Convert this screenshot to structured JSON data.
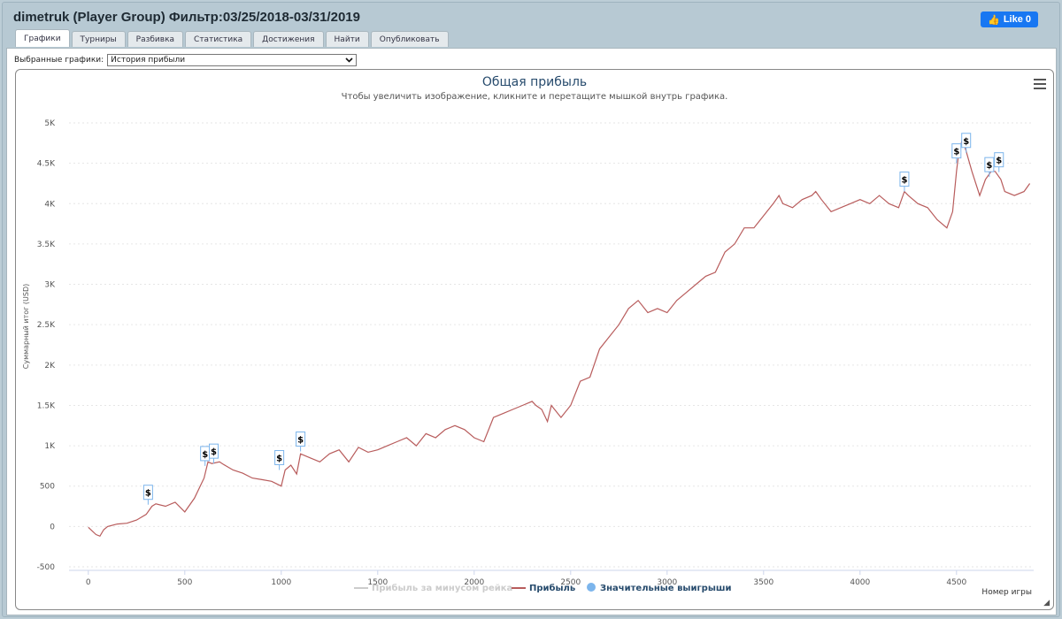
{
  "window": {
    "title": "dimetruk (Player Group) Фильтр:03/25/2018-03/31/2019",
    "like_label": "Like 0"
  },
  "tabs": [
    {
      "label": "Графики",
      "active": true
    },
    {
      "label": "Турниры",
      "active": false
    },
    {
      "label": "Разбивка",
      "active": false
    },
    {
      "label": "Статистика",
      "active": false
    },
    {
      "label": "Достижения",
      "active": false
    },
    {
      "label": "Найти",
      "active": false
    },
    {
      "label": "Опубликовать",
      "active": false
    }
  ],
  "selector": {
    "label": "Выбранные графики:",
    "value": "История прибыли"
  },
  "icons": {
    "menu": "hamburger-menu-icon",
    "dropdown": "chevron-down-icon",
    "like": "thumbs-up-icon",
    "resize": "resize-grip-icon"
  },
  "colors": {
    "profit_line": "#b85c5c",
    "rake_line": "#cccccc",
    "big_win_marker": "#7cb5ec",
    "title": "#274b6d"
  },
  "chart_data": {
    "type": "line",
    "title": "Общая прибыль",
    "subtitle": "Чтобы увеличить изображение, кликните и перетащите мышкой внутрь графика.",
    "xlabel": "Номер игры",
    "ylabel": "Суммарный итог (USD)",
    "xlim": [
      -100,
      4900
    ],
    "ylim": [
      -500,
      5000
    ],
    "xticks": [
      0,
      500,
      1000,
      1500,
      2000,
      2500,
      3000,
      3500,
      4000,
      4500
    ],
    "xtick_labels": [
      "0",
      "500",
      "1000",
      "1500",
      "2000",
      "2500",
      "3000",
      "3500",
      "4000",
      "4500"
    ],
    "yticks": [
      -500,
      0,
      500,
      1000,
      1500,
      2000,
      2500,
      3000,
      3500,
      4000,
      4500,
      5000
    ],
    "ytick_labels": [
      "-500",
      "0",
      "500",
      "1K",
      "1.5K",
      "2K",
      "2.5K",
      "3K",
      "3.5K",
      "4K",
      "4.5K",
      "5K"
    ],
    "grid": "horizontal",
    "legend_position": "bottom-center",
    "series": [
      {
        "name": "Прибыль",
        "x": [
          0,
          40,
          60,
          80,
          100,
          150,
          200,
          250,
          300,
          330,
          350,
          400,
          450,
          500,
          550,
          600,
          620,
          640,
          680,
          700,
          750,
          800,
          850,
          900,
          950,
          1000,
          1020,
          1050,
          1080,
          1100,
          1150,
          1200,
          1250,
          1300,
          1350,
          1400,
          1450,
          1500,
          1550,
          1600,
          1650,
          1700,
          1750,
          1800,
          1850,
          1900,
          1950,
          2000,
          2050,
          2100,
          2150,
          2200,
          2250,
          2300,
          2320,
          2350,
          2380,
          2400,
          2450,
          2500,
          2550,
          2600,
          2650,
          2700,
          2750,
          2800,
          2850,
          2900,
          2950,
          3000,
          3050,
          3100,
          3150,
          3200,
          3250,
          3300,
          3350,
          3400,
          3450,
          3500,
          3550,
          3580,
          3600,
          3650,
          3700,
          3750,
          3770,
          3800,
          3850,
          3900,
          3950,
          4000,
          4050,
          4100,
          4150,
          4200,
          4230,
          4250,
          4300,
          4350,
          4400,
          4450,
          4480,
          4500,
          4510,
          4530,
          4550,
          4580,
          4620,
          4650,
          4680,
          4700,
          4730,
          4750,
          4800,
          4850,
          4880
        ],
        "values": [
          -10,
          -100,
          -120,
          -40,
          0,
          30,
          40,
          80,
          150,
          250,
          280,
          250,
          300,
          180,
          350,
          600,
          800,
          780,
          800,
          770,
          700,
          660,
          600,
          580,
          560,
          500,
          700,
          760,
          650,
          900,
          850,
          800,
          900,
          950,
          800,
          980,
          920,
          950,
          1000,
          1050,
          1100,
          1000,
          1150,
          1100,
          1200,
          1250,
          1200,
          1100,
          1050,
          1350,
          1400,
          1450,
          1500,
          1550,
          1500,
          1450,
          1300,
          1500,
          1350,
          1500,
          1800,
          1850,
          2200,
          2350,
          2500,
          2700,
          2800,
          2650,
          2700,
          2650,
          2800,
          2900,
          3000,
          3100,
          3150,
          3400,
          3500,
          3700,
          3700,
          3850,
          4000,
          4100,
          4000,
          3950,
          4050,
          4100,
          4150,
          4050,
          3900,
          3950,
          4000,
          4050,
          4000,
          4100,
          4000,
          3950,
          4150,
          4100,
          4000,
          3950,
          3800,
          3700,
          3900,
          4400,
          4600,
          4800,
          4650,
          4400,
          4100,
          4300,
          4400,
          4400,
          4300,
          4150,
          4100,
          4150,
          4250
        ]
      },
      {
        "name": "Прибыль за минусом рейка",
        "x": [],
        "values": []
      }
    ],
    "big_wins": {
      "name": "Значительные выигрыши",
      "marker_label": "$",
      "points": [
        {
          "x": 310,
          "y": 270
        },
        {
          "x": 605,
          "y": 750
        },
        {
          "x": 650,
          "y": 780
        },
        {
          "x": 990,
          "y": 700
        },
        {
          "x": 1100,
          "y": 930
        },
        {
          "x": 4230,
          "y": 4150
        },
        {
          "x": 4500,
          "y": 4500
        },
        {
          "x": 4550,
          "y": 4630
        },
        {
          "x": 4670,
          "y": 4330
        },
        {
          "x": 4720,
          "y": 4390
        }
      ]
    }
  }
}
